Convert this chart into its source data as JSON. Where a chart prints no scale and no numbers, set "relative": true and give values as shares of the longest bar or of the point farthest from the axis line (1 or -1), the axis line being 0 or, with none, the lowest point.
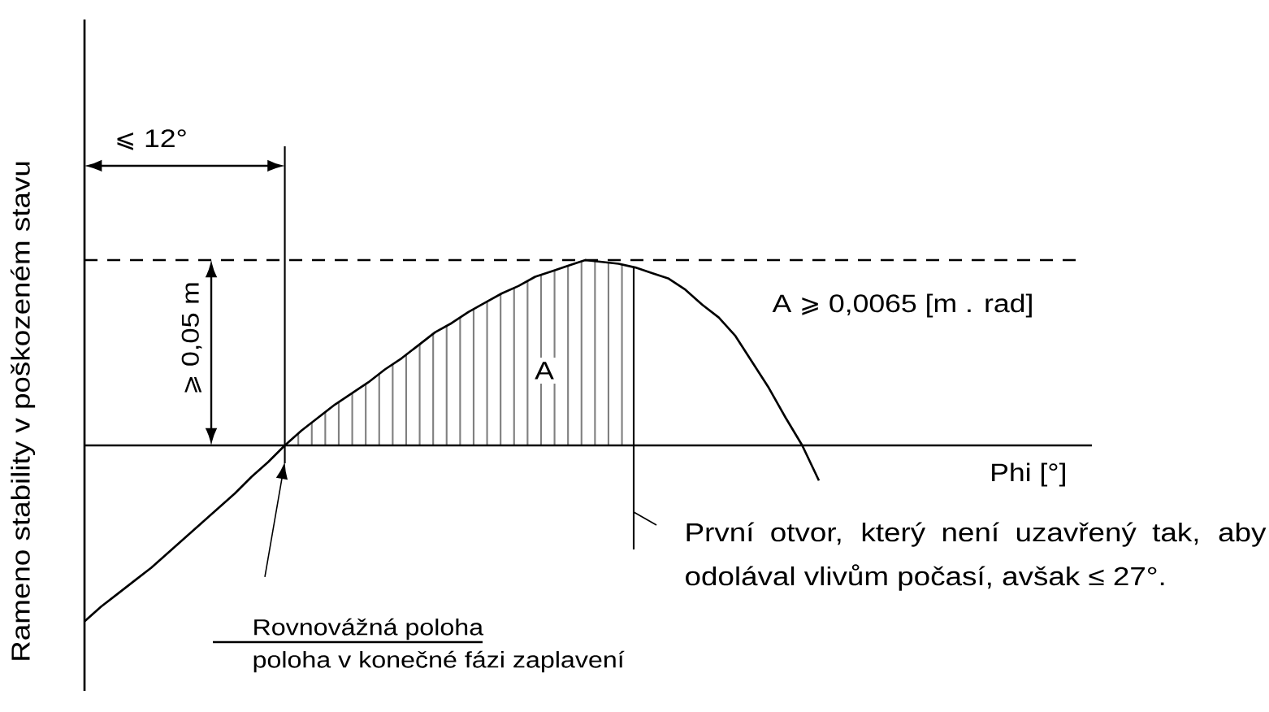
{
  "chart_data": {
    "type": "line",
    "relative": true,
    "ylabel": "Rameno stability v poškozeném stavu",
    "categories": [
      null,
      null,
      null,
      null,
      null,
      null,
      null,
      null,
      null,
      null,
      null,
      null,
      null,
      null,
      null,
      null,
      null,
      null,
      null,
      null,
      null,
      null,
      null,
      null,
      null,
      null,
      null,
      null,
      null,
      null,
      null,
      null,
      null,
      null,
      null,
      null,
      null,
      null,
      null,
      null,
      null,
      null,
      null,
      null,
      null
    ],
    "series": [
      {
        "color": "#000000",
        "values": [
          -0.95,
          -0.87,
          -0.8,
          -0.73,
          -0.66,
          -0.58,
          -0.5,
          -0.42,
          -0.34,
          -0.26,
          -0.17,
          -0.09,
          0,
          0.08,
          0.15,
          0.22,
          0.28,
          0.34,
          0.41,
          0.47,
          0.54,
          0.61,
          0.66,
          0.72,
          0.77,
          0.82,
          0.86,
          0.91,
          0.94,
          0.97,
          1,
          0.99,
          0.98,
          0.96,
          0.93,
          0.9,
          0.84,
          0.76,
          0.69,
          0.59,
          0.45,
          0.31,
          0.15,
          0,
          -0.19
        ]
      }
    ],
    "ref_lines": [
      {
        "axis": "y",
        "value": 1,
        "line_style": "dashed",
        "color": "#000000"
      }
    ],
    "annotations": [
      "⩽ 12°",
      "⩾ 0,05 m",
      "A",
      "A ⩾ 0,0065 [m . rad]",
      "Phi [°]",
      "První otvor, který není uzavřený tak, aby odolával vlivům počasí, avšak ≤ 27°.",
      "Rovnovážná poloha",
      "poloha v konečné fázi zaplavení"
    ]
  }
}
